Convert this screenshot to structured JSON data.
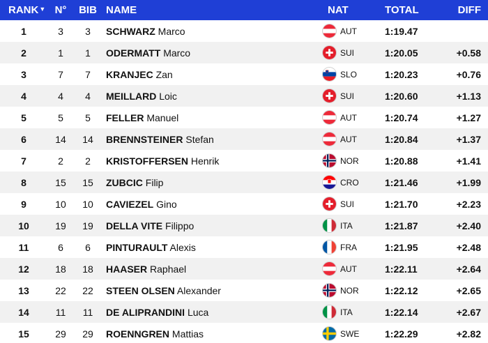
{
  "header": {
    "rank": "RANK",
    "no": "N°",
    "bib": "BIB",
    "name": "NAME",
    "nat": "NAT",
    "total": "TOTAL",
    "diff": "DIFF"
  },
  "rows": [
    {
      "rank": "1",
      "no": "3",
      "bib": "3",
      "surname": "SCHWARZ",
      "firstname": "Marco",
      "nat": "AUT",
      "total": "1:19.47",
      "diff": ""
    },
    {
      "rank": "2",
      "no": "1",
      "bib": "1",
      "surname": "ODERMATT",
      "firstname": "Marco",
      "nat": "SUI",
      "total": "1:20.05",
      "diff": "+0.58"
    },
    {
      "rank": "3",
      "no": "7",
      "bib": "7",
      "surname": "KRANJEC",
      "firstname": "Zan",
      "nat": "SLO",
      "total": "1:20.23",
      "diff": "+0.76"
    },
    {
      "rank": "4",
      "no": "4",
      "bib": "4",
      "surname": "MEILLARD",
      "firstname": "Loic",
      "nat": "SUI",
      "total": "1:20.60",
      "diff": "+1.13"
    },
    {
      "rank": "5",
      "no": "5",
      "bib": "5",
      "surname": "FELLER",
      "firstname": "Manuel",
      "nat": "AUT",
      "total": "1:20.74",
      "diff": "+1.27"
    },
    {
      "rank": "6",
      "no": "14",
      "bib": "14",
      "surname": "BRENNSTEINER",
      "firstname": "Stefan",
      "nat": "AUT",
      "total": "1:20.84",
      "diff": "+1.37"
    },
    {
      "rank": "7",
      "no": "2",
      "bib": "2",
      "surname": "KRISTOFFERSEN",
      "firstname": "Henrik",
      "nat": "NOR",
      "total": "1:20.88",
      "diff": "+1.41"
    },
    {
      "rank": "8",
      "no": "15",
      "bib": "15",
      "surname": "ZUBCIC",
      "firstname": "Filip",
      "nat": "CRO",
      "total": "1:21.46",
      "diff": "+1.99"
    },
    {
      "rank": "9",
      "no": "10",
      "bib": "10",
      "surname": "CAVIEZEL",
      "firstname": "Gino",
      "nat": "SUI",
      "total": "1:21.70",
      "diff": "+2.23"
    },
    {
      "rank": "10",
      "no": "19",
      "bib": "19",
      "surname": "DELLA VITE",
      "firstname": "Filippo",
      "nat": "ITA",
      "total": "1:21.87",
      "diff": "+2.40"
    },
    {
      "rank": "11",
      "no": "6",
      "bib": "6",
      "surname": "PINTURAULT",
      "firstname": "Alexis",
      "nat": "FRA",
      "total": "1:21.95",
      "diff": "+2.48"
    },
    {
      "rank": "12",
      "no": "18",
      "bib": "18",
      "surname": "HAASER",
      "firstname": "Raphael",
      "nat": "AUT",
      "total": "1:22.11",
      "diff": "+2.64"
    },
    {
      "rank": "13",
      "no": "22",
      "bib": "22",
      "surname": "STEEN OLSEN",
      "firstname": "Alexander",
      "nat": "NOR",
      "total": "1:22.12",
      "diff": "+2.65"
    },
    {
      "rank": "14",
      "no": "11",
      "bib": "11",
      "surname": "DE ALIPRANDINI",
      "firstname": "Luca",
      "nat": "ITA",
      "total": "1:22.14",
      "diff": "+2.67"
    },
    {
      "rank": "15",
      "no": "29",
      "bib": "29",
      "surname": "ROENNGREN",
      "firstname": "Mattias",
      "nat": "SWE",
      "total": "1:22.29",
      "diff": "+2.82"
    }
  ],
  "colors": {
    "header_bg": "#1f3fd6",
    "stripe": "#f1f1f1"
  }
}
